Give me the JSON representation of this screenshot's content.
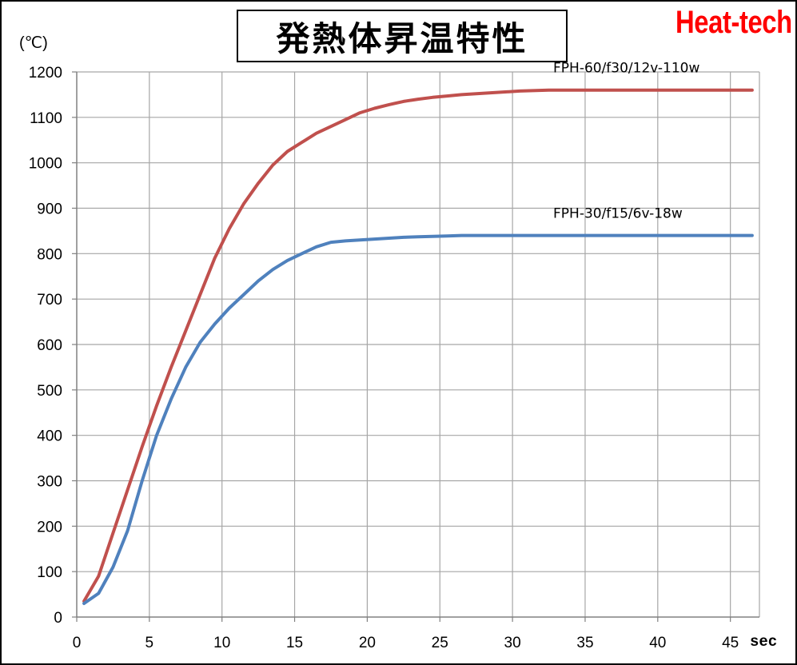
{
  "title": "発熱体昇温特性",
  "brand": {
    "text": "Heat-tech",
    "color": "#ff0000"
  },
  "colors": {
    "grid": "#a6a6a6",
    "axis": "#808080"
  },
  "chart_data": {
    "type": "line",
    "title": "発熱体昇温特性",
    "xlabel": "sec",
    "ylabel": "(℃)",
    "xlim": [
      0,
      47
    ],
    "ylim": [
      0,
      1200
    ],
    "x_ticks": [
      0,
      5,
      10,
      15,
      20,
      25,
      30,
      35,
      40,
      45
    ],
    "y_ticks": [
      0,
      100,
      200,
      300,
      400,
      500,
      600,
      700,
      800,
      900,
      1000,
      1100,
      1200
    ],
    "grid": true,
    "series": [
      {
        "name": "FPH-60/f30/12v-110w",
        "color": "#c0504d",
        "x": [
          0.5,
          1.5,
          2.5,
          3.5,
          4.5,
          5.5,
          6.5,
          7.5,
          8.5,
          9.5,
          10.5,
          11.5,
          12.5,
          13.5,
          14.5,
          15.5,
          16.5,
          17.5,
          18.5,
          19.5,
          20.5,
          21.5,
          22.5,
          23.5,
          24.5,
          25.5,
          26.5,
          27.5,
          28.5,
          29.5,
          30.5,
          32.5,
          34.5,
          36.5,
          38.5,
          40.5,
          42.5,
          44.5,
          46.5
        ],
        "y": [
          35,
          90,
          185,
          280,
          375,
          465,
          550,
          630,
          710,
          790,
          855,
          910,
          955,
          995,
          1025,
          1045,
          1065,
          1080,
          1095,
          1110,
          1120,
          1128,
          1135,
          1140,
          1144,
          1147,
          1150,
          1152,
          1154,
          1156,
          1158,
          1160,
          1160,
          1160,
          1160,
          1160,
          1160,
          1160,
          1160
        ]
      },
      {
        "name": "FPH-30/f15/6v-18w",
        "color": "#4f81bd",
        "x": [
          0.5,
          1.5,
          2.5,
          3.5,
          4.5,
          5.5,
          6.5,
          7.5,
          8.5,
          9.5,
          10.5,
          11.5,
          12.5,
          13.5,
          14.5,
          15.5,
          16.5,
          17.5,
          18.5,
          19.5,
          20.5,
          21.5,
          22.5,
          23.5,
          24.5,
          25.5,
          26.5,
          28.5,
          30.5,
          32.5,
          34.5,
          36.5,
          38.5,
          40.5,
          42.5,
          44.5,
          46.5
        ],
        "y": [
          30,
          52,
          110,
          190,
          300,
          400,
          480,
          550,
          605,
          645,
          680,
          710,
          740,
          765,
          785,
          800,
          815,
          825,
          828,
          830,
          832,
          834,
          836,
          837,
          838,
          839,
          840,
          840,
          840,
          840,
          840,
          840,
          840,
          840,
          840,
          840,
          840
        ]
      }
    ]
  }
}
